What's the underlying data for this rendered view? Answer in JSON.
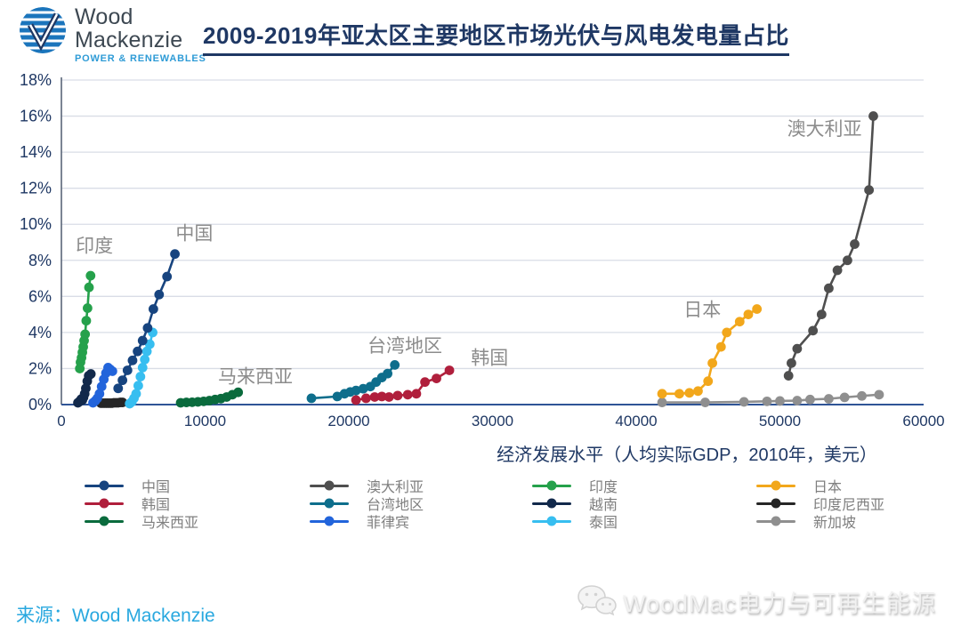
{
  "header": {
    "logo": {
      "line1": "Wood",
      "line2": "Mackenzie",
      "tagline": "POWER & RENEWABLES"
    },
    "title": "2009-2019年亚太区主要地区市场光伏与风电发电量占比"
  },
  "chart_data": {
    "type": "scatter",
    "title": "2009-2019年亚太区主要地区市场光伏与风电发电量占比",
    "xlabel": "经济发展水平（人均实际GDP，2010年，美元）",
    "ylabel": "",
    "xlim": [
      0,
      60000
    ],
    "ylim": [
      0,
      18
    ],
    "x_ticks": [
      0,
      10000,
      20000,
      30000,
      40000,
      50000,
      60000
    ],
    "y_ticks": [
      "0%",
      "2%",
      "4%",
      "6%",
      "8%",
      "10%",
      "12%",
      "14%",
      "16%",
      "18%"
    ],
    "grid": true,
    "legend_position": "bottom",
    "series": [
      {
        "name": "新加坡",
        "color": "#8f8f8f",
        "points": [
          [
            41800,
            0.12
          ],
          [
            44800,
            0.12
          ],
          [
            47500,
            0.15
          ],
          [
            49100,
            0.18
          ],
          [
            50000,
            0.2
          ],
          [
            51200,
            0.22
          ],
          [
            52100,
            0.28
          ],
          [
            53400,
            0.32
          ],
          [
            54500,
            0.4
          ],
          [
            55700,
            0.48
          ],
          [
            56900,
            0.55
          ]
        ]
      },
      {
        "name": "印度尼西亚",
        "color": "#262626",
        "points": [
          [
            2750,
            0.08
          ],
          [
            2900,
            0.08
          ],
          [
            3050,
            0.08
          ],
          [
            3200,
            0.08
          ],
          [
            3350,
            0.08
          ],
          [
            3500,
            0.08
          ],
          [
            3650,
            0.1
          ],
          [
            3800,
            0.1
          ],
          [
            3950,
            0.1
          ],
          [
            4100,
            0.12
          ],
          [
            4250,
            0.12
          ]
        ]
      },
      {
        "name": "马来西亚",
        "color": "#0a6b3d",
        "points": [
          [
            8300,
            0.1
          ],
          [
            8700,
            0.12
          ],
          [
            9100,
            0.13
          ],
          [
            9500,
            0.15
          ],
          [
            9900,
            0.18
          ],
          [
            10300,
            0.22
          ],
          [
            10700,
            0.28
          ],
          [
            11100,
            0.33
          ],
          [
            11500,
            0.42
          ],
          [
            11900,
            0.55
          ],
          [
            12300,
            0.68
          ]
        ]
      },
      {
        "name": "越南",
        "color": "#12294b",
        "points": [
          [
            1150,
            0.1
          ],
          [
            1230,
            0.15
          ],
          [
            1300,
            0.2
          ],
          [
            1380,
            0.3
          ],
          [
            1460,
            0.25
          ],
          [
            1540,
            0.4
          ],
          [
            1620,
            0.6
          ],
          [
            1700,
            0.9
          ],
          [
            1800,
            1.3
          ],
          [
            1900,
            1.6
          ],
          [
            2050,
            1.7
          ]
        ]
      },
      {
        "name": "菲律宾",
        "color": "#2264db",
        "points": [
          [
            2200,
            0.1
          ],
          [
            2350,
            0.2
          ],
          [
            2500,
            0.35
          ],
          [
            2650,
            0.6
          ],
          [
            2800,
            1.0
          ],
          [
            2950,
            1.4
          ],
          [
            3100,
            1.75
          ],
          [
            3250,
            2.05
          ],
          [
            3400,
            1.95
          ],
          [
            3550,
            1.85
          ]
        ]
      },
      {
        "name": "泰国",
        "color": "#37bef0",
        "points": [
          [
            4750,
            0.05
          ],
          [
            4900,
            0.15
          ],
          [
            5050,
            0.35
          ],
          [
            5200,
            0.6
          ],
          [
            5350,
            1.05
          ],
          [
            5500,
            1.55
          ],
          [
            5650,
            2.05
          ],
          [
            5800,
            2.5
          ],
          [
            5950,
            2.95
          ],
          [
            6150,
            3.35
          ],
          [
            6350,
            4.0
          ]
        ]
      },
      {
        "name": "印度",
        "color": "#25a14b",
        "points": [
          [
            1280,
            2.0
          ],
          [
            1330,
            2.35
          ],
          [
            1400,
            2.6
          ],
          [
            1460,
            2.9
          ],
          [
            1520,
            3.2
          ],
          [
            1580,
            3.55
          ],
          [
            1650,
            3.9
          ],
          [
            1730,
            4.65
          ],
          [
            1820,
            5.35
          ],
          [
            1920,
            6.5
          ],
          [
            2030,
            7.15
          ]
        ]
      },
      {
        "name": "中国",
        "color": "#17447f",
        "points": [
          [
            3950,
            0.9
          ],
          [
            4250,
            1.35
          ],
          [
            4600,
            1.9
          ],
          [
            4950,
            2.45
          ],
          [
            5300,
            2.95
          ],
          [
            5650,
            3.55
          ],
          [
            6000,
            4.25
          ],
          [
            6400,
            5.3
          ],
          [
            6800,
            6.1
          ],
          [
            7350,
            7.1
          ],
          [
            7900,
            8.35
          ]
        ]
      },
      {
        "name": "台湾地区",
        "color": "#0e6e8c",
        "points": [
          [
            17400,
            0.35
          ],
          [
            19200,
            0.45
          ],
          [
            19700,
            0.6
          ],
          [
            20100,
            0.7
          ],
          [
            20500,
            0.78
          ],
          [
            21000,
            0.88
          ],
          [
            21500,
            1.0
          ],
          [
            21900,
            1.25
          ],
          [
            22300,
            1.5
          ],
          [
            22700,
            1.72
          ],
          [
            23200,
            2.2
          ]
        ]
      },
      {
        "name": "韩国",
        "color": "#b01f3c",
        "points": [
          [
            20500,
            0.25
          ],
          [
            21200,
            0.35
          ],
          [
            21800,
            0.42
          ],
          [
            22300,
            0.45
          ],
          [
            22800,
            0.42
          ],
          [
            23400,
            0.5
          ],
          [
            24100,
            0.55
          ],
          [
            24700,
            0.6
          ],
          [
            25300,
            1.25
          ],
          [
            26100,
            1.45
          ],
          [
            27000,
            1.9
          ]
        ]
      },
      {
        "name": "日本",
        "color": "#f2a71b",
        "points": [
          [
            41800,
            0.6
          ],
          [
            43000,
            0.6
          ],
          [
            43700,
            0.65
          ],
          [
            44300,
            0.75
          ],
          [
            45000,
            1.3
          ],
          [
            45300,
            2.3
          ],
          [
            45900,
            3.2
          ],
          [
            46300,
            4.0
          ],
          [
            47200,
            4.6
          ],
          [
            47800,
            5.0
          ],
          [
            48400,
            5.3
          ]
        ]
      },
      {
        "name": "澳大利亚",
        "color": "#4f4f4f",
        "points": [
          [
            50600,
            1.6
          ],
          [
            50800,
            2.3
          ],
          [
            51200,
            3.1
          ],
          [
            52300,
            4.1
          ],
          [
            52900,
            5.0
          ],
          [
            53400,
            6.45
          ],
          [
            54000,
            7.45
          ],
          [
            54700,
            8.0
          ],
          [
            55200,
            8.9
          ],
          [
            56200,
            11.9
          ],
          [
            56500,
            16.0
          ]
        ]
      }
    ],
    "annotations": [
      {
        "text": "印度",
        "x": 1000,
        "y": 8.8
      },
      {
        "text": "中国",
        "x": 7950,
        "y": 9.5
      },
      {
        "text": "马来西亚",
        "x": 10900,
        "y": 1.55
      },
      {
        "text": "台湾地区",
        "x": 21300,
        "y": 3.25
      },
      {
        "text": "韩国",
        "x": 28500,
        "y": 2.6
      },
      {
        "text": "日本",
        "x": 43300,
        "y": 5.25
      },
      {
        "text": "澳大利亚",
        "x": 50500,
        "y": 15.3
      }
    ]
  },
  "legend": {
    "columns": [
      [
        {
          "label": "中国",
          "color": "#17447f"
        },
        {
          "label": "韩国",
          "color": "#b01f3c"
        },
        {
          "label": "马来西亚",
          "color": "#0a6b3d"
        }
      ],
      [
        {
          "label": "澳大利亚",
          "color": "#4f4f4f"
        },
        {
          "label": "台湾地区",
          "color": "#0e6e8c"
        },
        {
          "label": "菲律宾",
          "color": "#2264db"
        }
      ],
      [
        {
          "label": "印度",
          "color": "#25a14b"
        },
        {
          "label": "越南",
          "color": "#12294b"
        },
        {
          "label": "泰国",
          "color": "#37bef0"
        }
      ],
      [
        {
          "label": "日本",
          "color": "#f2a71b"
        },
        {
          "label": "印度尼西亚",
          "color": "#262626"
        },
        {
          "label": "新加坡",
          "color": "#8f8f8f"
        }
      ]
    ]
  },
  "footer": {
    "source_prefix": "来源：",
    "source_name": "Wood Mackenzie",
    "watermark": "WoodMac电力与可再生能源"
  },
  "colors": {
    "title_navy": "#1f3864",
    "axis_bottom": "#2f5496",
    "axis_left": "#5a6578",
    "gridline": "#d9dde6",
    "annotation_gray": "#8c8c8c",
    "source_cyan": "#29a8df"
  }
}
